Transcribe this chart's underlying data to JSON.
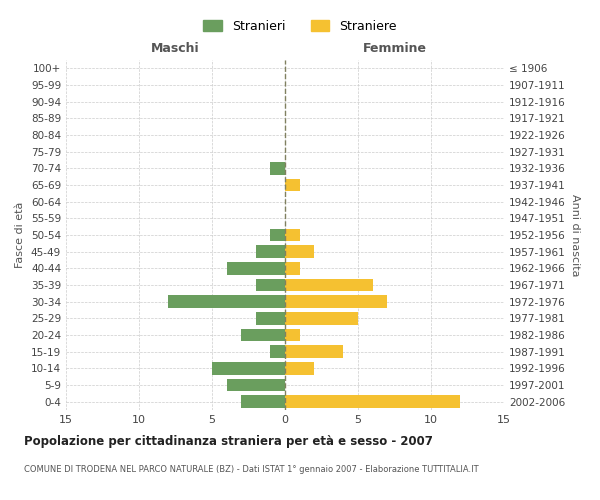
{
  "age_groups": [
    "0-4",
    "5-9",
    "10-14",
    "15-19",
    "20-24",
    "25-29",
    "30-34",
    "35-39",
    "40-44",
    "45-49",
    "50-54",
    "55-59",
    "60-64",
    "65-69",
    "70-74",
    "75-79",
    "80-84",
    "85-89",
    "90-94",
    "95-99",
    "100+"
  ],
  "birth_years": [
    "2002-2006",
    "1997-2001",
    "1992-1996",
    "1987-1991",
    "1982-1986",
    "1977-1981",
    "1972-1976",
    "1967-1971",
    "1962-1966",
    "1957-1961",
    "1952-1956",
    "1947-1951",
    "1942-1946",
    "1937-1941",
    "1932-1936",
    "1927-1931",
    "1922-1926",
    "1917-1921",
    "1912-1916",
    "1907-1911",
    "≤ 1906"
  ],
  "maschi": [
    3,
    4,
    5,
    1,
    3,
    2,
    8,
    2,
    4,
    2,
    1,
    0,
    0,
    0,
    1,
    0,
    0,
    0,
    0,
    0,
    0
  ],
  "femmine": [
    12,
    0,
    2,
    4,
    1,
    5,
    7,
    6,
    1,
    2,
    1,
    0,
    0,
    1,
    0,
    0,
    0,
    0,
    0,
    0,
    0
  ],
  "color_maschi": "#6a9e5e",
  "color_femmine": "#f5c131",
  "color_dashed_line": "#808060",
  "title": "Popolazione per cittadinanza straniera per età e sesso - 2007",
  "subtitle": "COMUNE DI TRODENA NEL PARCO NATURALE (BZ) - Dati ISTAT 1° gennaio 2007 - Elaborazione TUTTITALIA.IT",
  "xlabel_left": "Maschi",
  "xlabel_right": "Femmine",
  "ylabel_left": "Fasce di età",
  "ylabel_right": "Anni di nascita",
  "legend_stranieri": "Stranieri",
  "legend_straniere": "Straniere",
  "xlim": 15,
  "background_color": "#ffffff",
  "grid_color": "#cccccc"
}
